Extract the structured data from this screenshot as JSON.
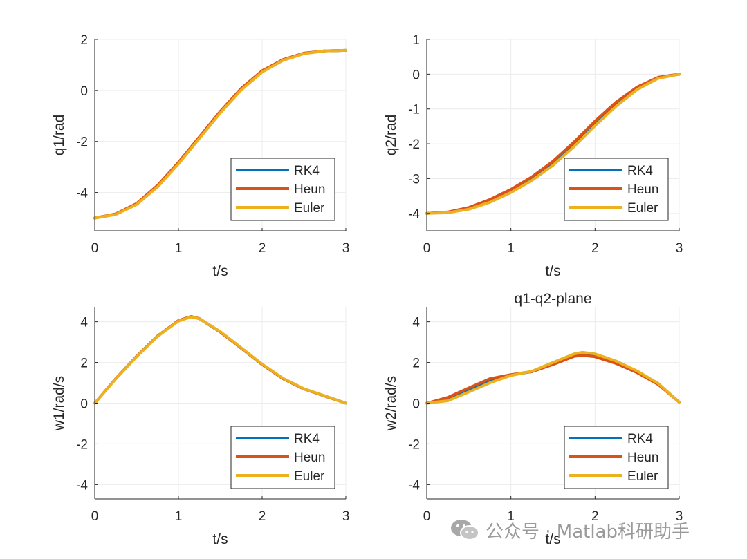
{
  "watermark": "公众号 · Matlab科研助手",
  "colors": {
    "RK4": "#0072BD",
    "Heun": "#D95319",
    "Euler": "#EDB120",
    "axis": "#262626",
    "grid": "#ececec"
  },
  "chart_data": [
    {
      "type": "line",
      "title": "",
      "xlabel": "t/s",
      "ylabel": "q1/rad",
      "xlim": [
        0,
        3
      ],
      "ylim": [
        -5.5,
        2
      ],
      "xticks": [
        "0",
        "1",
        "2",
        "3"
      ],
      "yticks": [
        "2",
        "0",
        "-2",
        "-4"
      ],
      "grid": true,
      "legend": "bottom-right",
      "x": [
        0,
        0.25,
        0.5,
        0.75,
        1.0,
        1.25,
        1.5,
        1.75,
        2.0,
        2.25,
        2.5,
        2.75,
        3.0
      ],
      "series": [
        {
          "name": "RK4",
          "values": [
            -5.0,
            -4.85,
            -4.45,
            -3.75,
            -2.85,
            -1.85,
            -0.85,
            0.05,
            0.75,
            1.2,
            1.45,
            1.55,
            1.57
          ]
        },
        {
          "name": "Heun",
          "values": [
            -5.0,
            -4.84,
            -4.43,
            -3.72,
            -2.82,
            -1.82,
            -0.82,
            0.08,
            0.77,
            1.21,
            1.46,
            1.55,
            1.57
          ]
        },
        {
          "name": "Euler",
          "values": [
            -5.0,
            -4.86,
            -4.47,
            -3.78,
            -2.88,
            -1.88,
            -0.88,
            0.02,
            0.72,
            1.18,
            1.44,
            1.55,
            1.57
          ]
        }
      ]
    },
    {
      "type": "line",
      "title": "",
      "xlabel": "t/s",
      "ylabel": "q2/rad",
      "xlim": [
        0,
        3
      ],
      "ylim": [
        -4.5,
        1
      ],
      "xticks": [
        "0",
        "1",
        "2",
        "3"
      ],
      "yticks": [
        "1",
        "0",
        "-1",
        "-2",
        "-3",
        "-4"
      ],
      "grid": true,
      "legend": "bottom-right",
      "x": [
        0,
        0.25,
        0.5,
        0.75,
        1.0,
        1.25,
        1.5,
        1.75,
        2.0,
        2.25,
        2.5,
        2.75,
        3.0
      ],
      "series": [
        {
          "name": "RK4",
          "values": [
            -4.0,
            -3.97,
            -3.85,
            -3.63,
            -3.35,
            -3.0,
            -2.55,
            -2.0,
            -1.4,
            -0.85,
            -0.4,
            -0.1,
            0.0
          ]
        },
        {
          "name": "Heun",
          "values": [
            -4.0,
            -3.96,
            -3.83,
            -3.6,
            -3.31,
            -2.95,
            -2.5,
            -1.95,
            -1.35,
            -0.8,
            -0.37,
            -0.09,
            0.0
          ]
        },
        {
          "name": "Euler",
          "values": [
            -4.0,
            -3.98,
            -3.88,
            -3.68,
            -3.4,
            -3.05,
            -2.62,
            -2.08,
            -1.48,
            -0.92,
            -0.44,
            -0.12,
            0.0
          ]
        }
      ]
    },
    {
      "type": "line",
      "title": "",
      "xlabel": "t/s",
      "ylabel": "w1/rad/s",
      "xlim": [
        0,
        3
      ],
      "ylim": [
        -4.7,
        4.7
      ],
      "xticks": [
        "0",
        "1",
        "2",
        "3"
      ],
      "yticks": [
        "4",
        "2",
        "0",
        "-2",
        "-4"
      ],
      "grid": true,
      "legend": "bottom-right",
      "x": [
        0,
        0.25,
        0.5,
        0.75,
        1.0,
        1.15,
        1.25,
        1.5,
        1.75,
        2.0,
        2.25,
        2.5,
        2.75,
        3.0
      ],
      "series": [
        {
          "name": "RK4",
          "values": [
            0.0,
            1.2,
            2.3,
            3.3,
            4.05,
            4.25,
            4.15,
            3.5,
            2.7,
            1.9,
            1.2,
            0.7,
            0.35,
            0.0
          ]
        },
        {
          "name": "Heun",
          "values": [
            0.0,
            1.2,
            2.3,
            3.3,
            4.06,
            4.26,
            4.16,
            3.5,
            2.7,
            1.9,
            1.2,
            0.7,
            0.35,
            0.0
          ]
        },
        {
          "name": "Euler",
          "values": [
            0.0,
            1.19,
            2.28,
            3.28,
            4.03,
            4.24,
            4.15,
            3.52,
            2.72,
            1.92,
            1.22,
            0.71,
            0.36,
            0.0
          ]
        }
      ]
    },
    {
      "type": "line",
      "title": "q1-q2-plane",
      "xlabel": "t/s",
      "ylabel": "w2/rad/s",
      "xlim": [
        0,
        3
      ],
      "ylim": [
        -4.7,
        4.7
      ],
      "xticks": [
        "0",
        "1",
        "2",
        "3"
      ],
      "yticks": [
        "4",
        "2",
        "0",
        "-2",
        "-4"
      ],
      "grid": true,
      "legend": "bottom-right",
      "x": [
        0,
        0.25,
        0.5,
        0.75,
        1.0,
        1.25,
        1.5,
        1.75,
        1.85,
        2.0,
        2.25,
        2.5,
        2.75,
        3.0
      ],
      "series": [
        {
          "name": "RK4",
          "values": [
            0.0,
            0.2,
            0.65,
            1.1,
            1.38,
            1.55,
            1.95,
            2.35,
            2.42,
            2.35,
            2.0,
            1.55,
            0.95,
            0.05
          ]
        },
        {
          "name": "Heun",
          "values": [
            0.0,
            0.28,
            0.75,
            1.2,
            1.4,
            1.55,
            1.9,
            2.3,
            2.35,
            2.28,
            1.95,
            1.5,
            0.92,
            0.05
          ]
        },
        {
          "name": "Euler",
          "values": [
            0.0,
            0.12,
            0.55,
            1.0,
            1.36,
            1.57,
            2.0,
            2.42,
            2.5,
            2.42,
            2.07,
            1.58,
            0.97,
            0.05
          ]
        }
      ]
    }
  ]
}
